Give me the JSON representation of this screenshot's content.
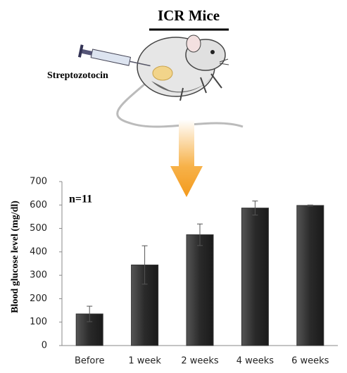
{
  "chart_data": {
    "type": "bar",
    "title": "ICR Mice",
    "drug_label": "Streptozotocin",
    "annotation": "n=11",
    "y_label": "Blood glucose level (mg/dl)",
    "categories": [
      "Before",
      "1 week",
      "2 weeks",
      "4 weeks",
      "6 weeks"
    ],
    "values": [
      135,
      344,
      473,
      587,
      598
    ],
    "errors": [
      33,
      82,
      46,
      30,
      2
    ],
    "color": "#333333",
    "ylim": [
      0,
      700
    ],
    "yticks": [
      0,
      100,
      200,
      300,
      400,
      500,
      600,
      700
    ],
    "grid": false
  }
}
